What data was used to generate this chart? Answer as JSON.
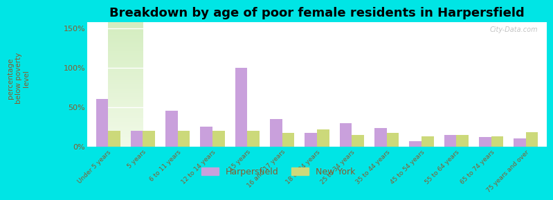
{
  "title": "Breakdown by age of poor female residents in Harpersfield",
  "ylabel": "percentage\nbelow poverty\nlevel",
  "categories": [
    "Under 5 years",
    "5 years",
    "6 to 11 years",
    "12 to 14 years",
    "15 years",
    "16 and 17 years",
    "18 to 24 years",
    "25 to 34 years",
    "35 to 44 years",
    "45 to 54 years",
    "55 to 64 years",
    "65 to 74 years",
    "75 years and over"
  ],
  "harpersfield": [
    60,
    20,
    45,
    25,
    100,
    35,
    17,
    30,
    23,
    7,
    15,
    12,
    10
  ],
  "newyork": [
    20,
    20,
    20,
    20,
    20,
    17,
    22,
    15,
    17,
    13,
    15,
    13,
    18
  ],
  "harpersfield_color": "#c9a0dc",
  "newyork_color": "#ccd97a",
  "background_color": "#00e5e5",
  "plot_bg_color": "#e8f5e0",
  "yticks": [
    0,
    50,
    100,
    150
  ],
  "ytick_labels": [
    "0%",
    "50%",
    "100%",
    "150%"
  ],
  "ylim": [
    0,
    158
  ],
  "legend_harpersfield": "Harpersfield",
  "legend_newyork": "New York",
  "title_fontsize": 13,
  "bar_width": 0.35,
  "tick_label_color": "#8B5A2B",
  "watermark": "City-Data.com"
}
